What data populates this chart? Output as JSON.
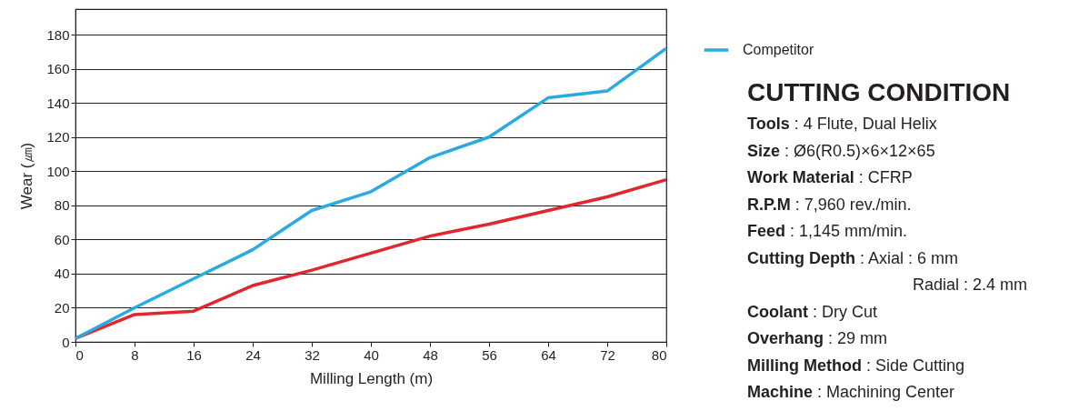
{
  "chart_data": {
    "type": "line",
    "xlabel": "Milling Length (m)",
    "ylabel": "Wear (㎛)",
    "x": [
      0,
      8,
      16,
      24,
      32,
      40,
      48,
      56,
      64,
      72,
      80
    ],
    "series": [
      {
        "color": "#e3262e",
        "values": [
          2,
          16,
          18,
          33,
          42,
          52,
          62,
          69,
          77,
          85,
          95
        ]
      },
      {
        "name": "Competitor",
        "color": "#29abe2",
        "values": [
          2,
          20,
          37,
          54,
          77,
          88,
          108,
          120,
          143,
          147,
          172
        ]
      }
    ],
    "xlim": [
      0,
      80
    ],
    "xticks": [
      0,
      8,
      16,
      24,
      32,
      40,
      48,
      56,
      64,
      72,
      80
    ],
    "ylim": [
      0,
      195
    ],
    "yticks": [
      0,
      20,
      40,
      60,
      80,
      100,
      120,
      140,
      160,
      180
    ],
    "grid": "y",
    "legend": "top right",
    "marker": "none",
    "line_style": "solid",
    "annotations": [
      "CUTTING  CONDITION",
      "Tools : 4 Flute, Dual Helix",
      "Size : Ø6(R0.5)×6×12×65",
      "Work Material :  CFRP",
      "R.P.M : 7,960 rev./min.",
      "Feed : 1,145 mm/min.",
      "Cutting Depth :  Axial : 6 mm",
      "Radial : 2.4 mm",
      "Coolant : Dry Cut",
      "Overhang : 29 mm",
      "Milling Method : Side Cutting",
      "Machine : Machining Center"
    ]
  }
}
